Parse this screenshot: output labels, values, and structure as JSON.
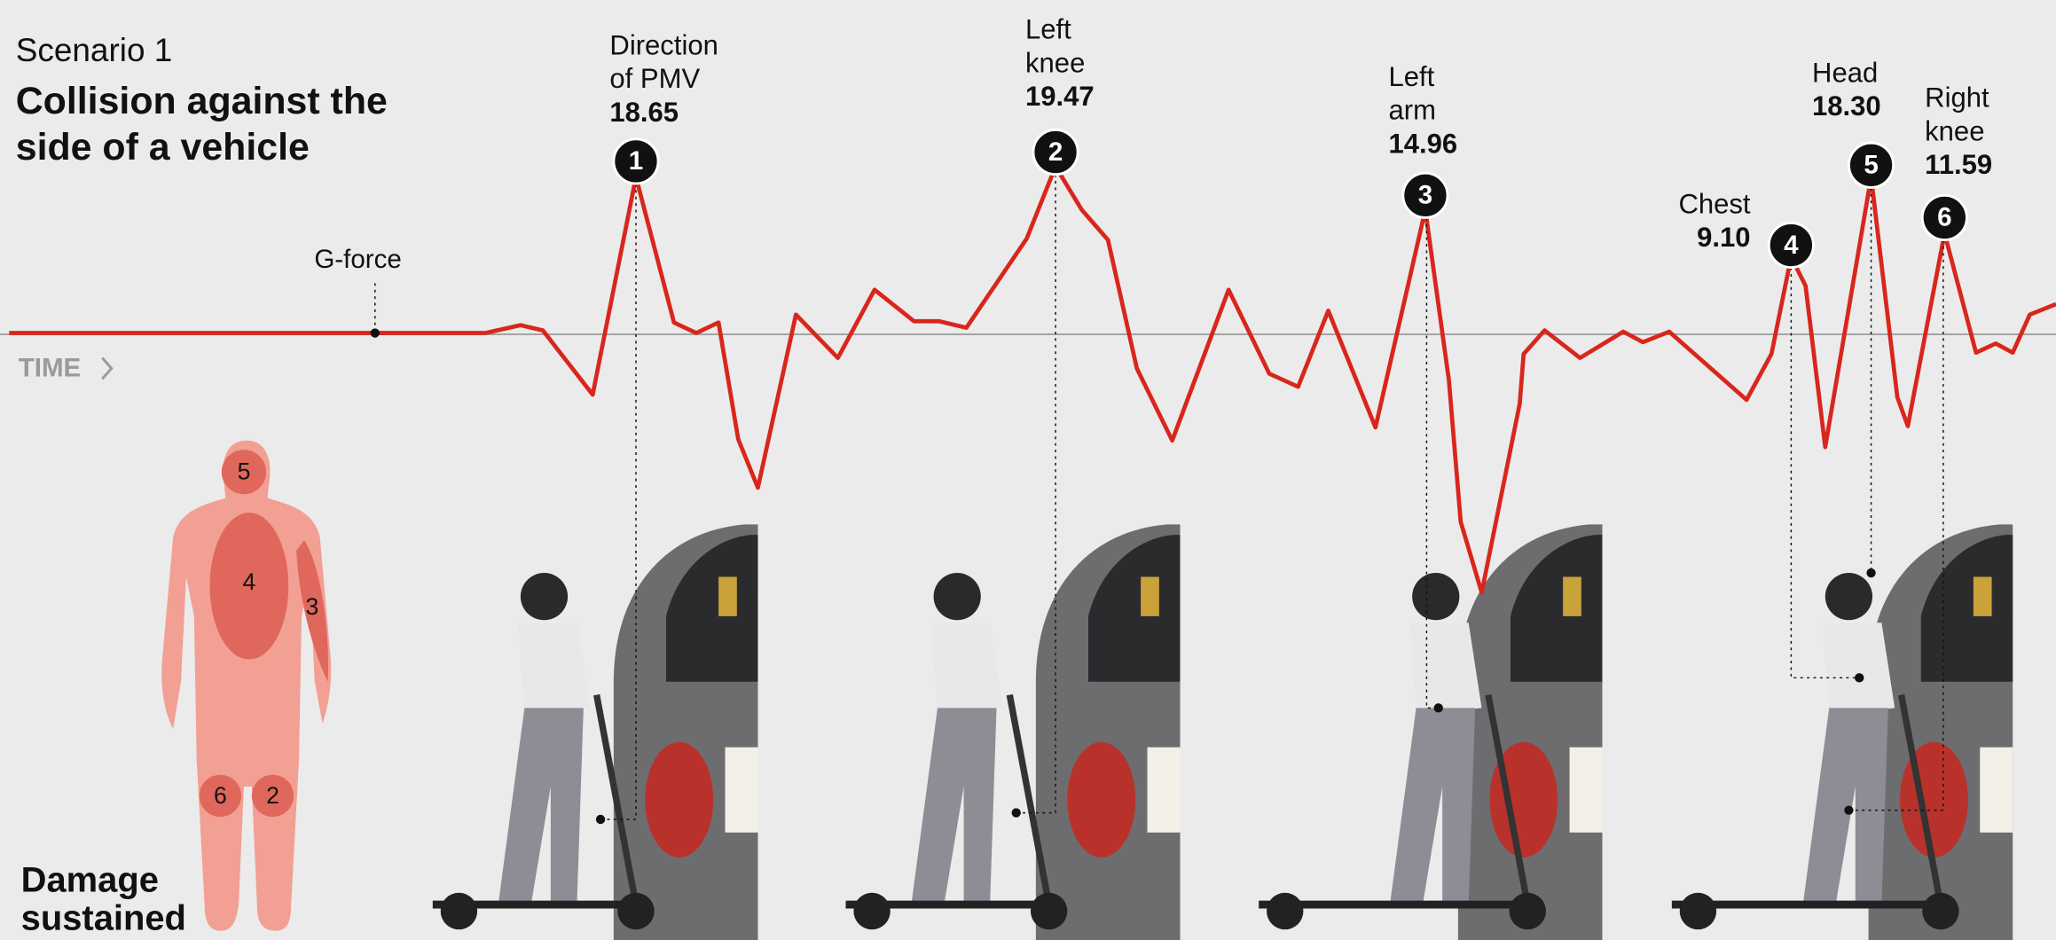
{
  "header": {
    "scenario": "Scenario 1",
    "title_lines": [
      "Collision against the",
      "side of a vehicle"
    ]
  },
  "axis": {
    "series_label": "G-force",
    "time_label": "TIME"
  },
  "annotations": [
    {
      "number": 1,
      "label_lines": [
        "Direction",
        "of PMV"
      ],
      "value": "18.65"
    },
    {
      "number": 2,
      "label_lines": [
        "Left",
        "knee"
      ],
      "value": "19.47"
    },
    {
      "number": 3,
      "label_lines": [
        "Left",
        "arm"
      ],
      "value": "14.96"
    },
    {
      "number": 4,
      "label_lines": [
        "Chest"
      ],
      "value": "9.10"
    },
    {
      "number": 5,
      "label_lines": [
        "Head"
      ],
      "value": "18.30"
    },
    {
      "number": 6,
      "label_lines": [
        "Right",
        "knee"
      ],
      "value": "11.59"
    }
  ],
  "body_map": {
    "regions": [
      5,
      4,
      3,
      6,
      2
    ],
    "caption_lines": [
      "Damage",
      "sustained"
    ]
  }
}
